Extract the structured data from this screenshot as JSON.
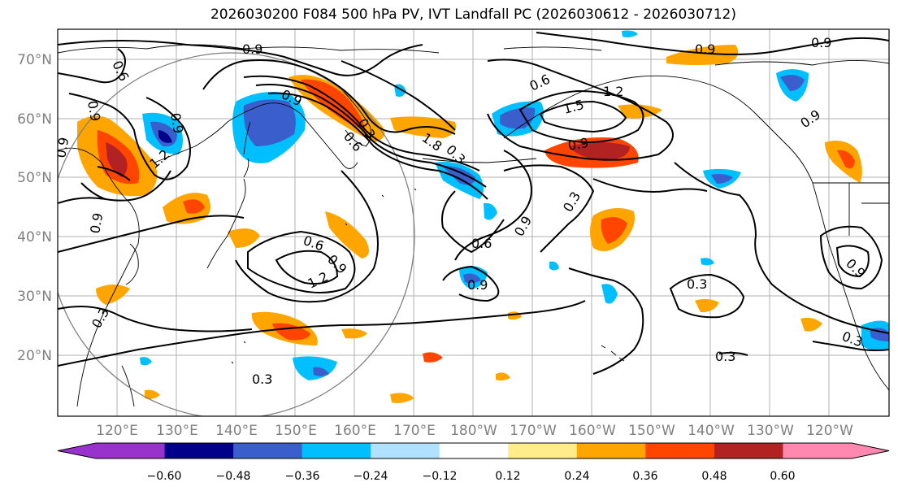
{
  "chart_data": {
    "type": "heatmap",
    "title": "2026030200 F084 500 hPa PV, IVT Landfall PC (2026030612 - 2026030712)",
    "lat_ticks": [
      "70°N",
      "60°N",
      "50°N",
      "40°N",
      "30°N",
      "20°N"
    ],
    "lon_ticks": [
      "120°E",
      "130°E",
      "140°E",
      "150°E",
      "160°E",
      "170°E",
      "180°W",
      "170°W",
      "160°W",
      "150°W",
      "140°W",
      "130°W",
      "120°W"
    ],
    "colorbar": {
      "ticks": [
        "−0.60",
        "−0.48",
        "−0.36",
        "−0.24",
        "−0.12",
        "0.12",
        "0.24",
        "0.36",
        "0.48",
        "0.60"
      ],
      "colors": [
        "#9932cc",
        "#00008b",
        "#3a5fcd",
        "#00bfff",
        "#b0e2ff",
        "#ffffff",
        "#ffec8b",
        "#ffa500",
        "#ff4500",
        "#b22222",
        "#ff88b0"
      ]
    },
    "contour_labels": [
      "0.9",
      "0.6",
      "0.9",
      "0.9",
      "0.3",
      "0.3",
      "1.2",
      "0.9",
      "0.6",
      "0.9",
      "1.5",
      "1.2",
      "0.9",
      "0.9",
      "0.9",
      "0.9",
      "0.3",
      "0.6",
      "0.9",
      "1.2",
      "0.9",
      "0.6",
      "0.9",
      "0.3",
      "0.9",
      "1.8",
      "0.3",
      "0.3",
      "0.3",
      "0.3",
      "0.9",
      "0.6"
    ],
    "colors": {
      "coast": "#000000",
      "grid": "#b0b0b0",
      "contour": "#000000",
      "circle": "#808080"
    }
  }
}
